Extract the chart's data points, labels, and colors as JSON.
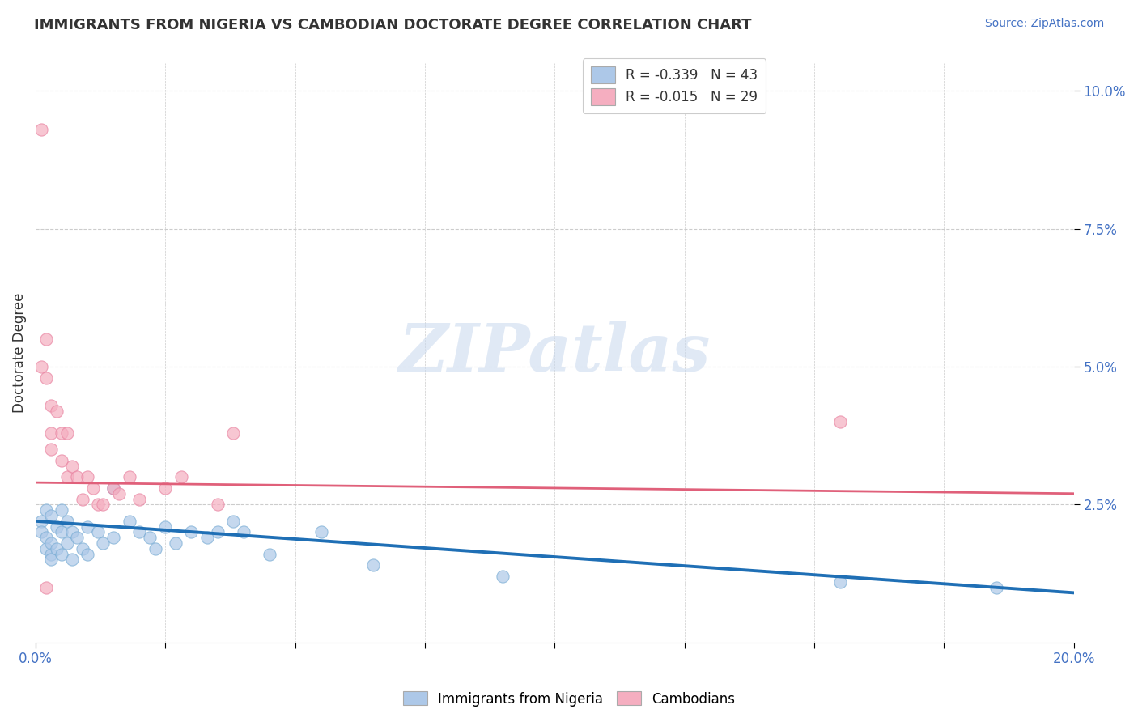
{
  "title": "IMMIGRANTS FROM NIGERIA VS CAMBODIAN DOCTORATE DEGREE CORRELATION CHART",
  "source": "Source: ZipAtlas.com",
  "ylabel": "Doctorate Degree",
  "xlim": [
    0.0,
    0.2
  ],
  "ylim": [
    0.0,
    0.105
  ],
  "x_ticks": [
    0.0,
    0.025,
    0.05,
    0.075,
    0.1,
    0.125,
    0.15,
    0.175,
    0.2
  ],
  "x_tick_labels_show": {
    "0.0": "0.0%",
    "0.20": "20.0%"
  },
  "y_ticks_right": [
    0.025,
    0.05,
    0.075,
    0.1
  ],
  "y_tick_labels_right": [
    "2.5%",
    "5.0%",
    "7.5%",
    "10.0%"
  ],
  "watermark": "ZIPatlas",
  "legend_entry1": "R = -0.339   N = 43",
  "legend_entry2": "R = -0.015   N = 29",
  "legend_label1": "Immigrants from Nigeria",
  "legend_label2": "Cambodians",
  "nigeria_color": "#adc8e8",
  "cambodia_color": "#f5aec0",
  "nigeria_edge_color": "#7aadd4",
  "cambodia_edge_color": "#e882a0",
  "nigeria_line_color": "#1f6fb5",
  "cambodia_line_color": "#e0607a",
  "nigeria_scatter_x": [
    0.001,
    0.001,
    0.002,
    0.002,
    0.002,
    0.003,
    0.003,
    0.003,
    0.003,
    0.004,
    0.004,
    0.005,
    0.005,
    0.005,
    0.006,
    0.006,
    0.007,
    0.007,
    0.008,
    0.009,
    0.01,
    0.01,
    0.012,
    0.013,
    0.015,
    0.015,
    0.018,
    0.02,
    0.022,
    0.023,
    0.025,
    0.027,
    0.03,
    0.033,
    0.035,
    0.038,
    0.04,
    0.045,
    0.055,
    0.065,
    0.09,
    0.155,
    0.185
  ],
  "nigeria_scatter_y": [
    0.022,
    0.02,
    0.024,
    0.019,
    0.017,
    0.023,
    0.018,
    0.016,
    0.015,
    0.021,
    0.017,
    0.024,
    0.02,
    0.016,
    0.022,
    0.018,
    0.02,
    0.015,
    0.019,
    0.017,
    0.021,
    0.016,
    0.02,
    0.018,
    0.028,
    0.019,
    0.022,
    0.02,
    0.019,
    0.017,
    0.021,
    0.018,
    0.02,
    0.019,
    0.02,
    0.022,
    0.02,
    0.016,
    0.02,
    0.014,
    0.012,
    0.011,
    0.01
  ],
  "cambodia_scatter_x": [
    0.001,
    0.001,
    0.002,
    0.002,
    0.003,
    0.003,
    0.003,
    0.004,
    0.005,
    0.005,
    0.006,
    0.006,
    0.007,
    0.008,
    0.009,
    0.01,
    0.011,
    0.012,
    0.013,
    0.015,
    0.016,
    0.018,
    0.02,
    0.025,
    0.028,
    0.035,
    0.038,
    0.155,
    0.002
  ],
  "cambodia_scatter_y": [
    0.093,
    0.05,
    0.055,
    0.048,
    0.043,
    0.038,
    0.035,
    0.042,
    0.038,
    0.033,
    0.038,
    0.03,
    0.032,
    0.03,
    0.026,
    0.03,
    0.028,
    0.025,
    0.025,
    0.028,
    0.027,
    0.03,
    0.026,
    0.028,
    0.03,
    0.025,
    0.038,
    0.04,
    0.01
  ],
  "nigeria_trend_x": [
    0.0,
    0.2
  ],
  "nigeria_trend_y": [
    0.022,
    0.009
  ],
  "cambodia_trend_x": [
    0.0,
    0.2
  ],
  "cambodia_trend_y": [
    0.029,
    0.027
  ],
  "background_color": "#ffffff",
  "grid_color": "#cccccc",
  "title_color": "#333333",
  "axis_color": "#4472c4",
  "title_fontsize": 13,
  "source_fontsize": 10,
  "watermark_fontsize": 60,
  "scatter_size": 120,
  "scatter_alpha": 0.7
}
